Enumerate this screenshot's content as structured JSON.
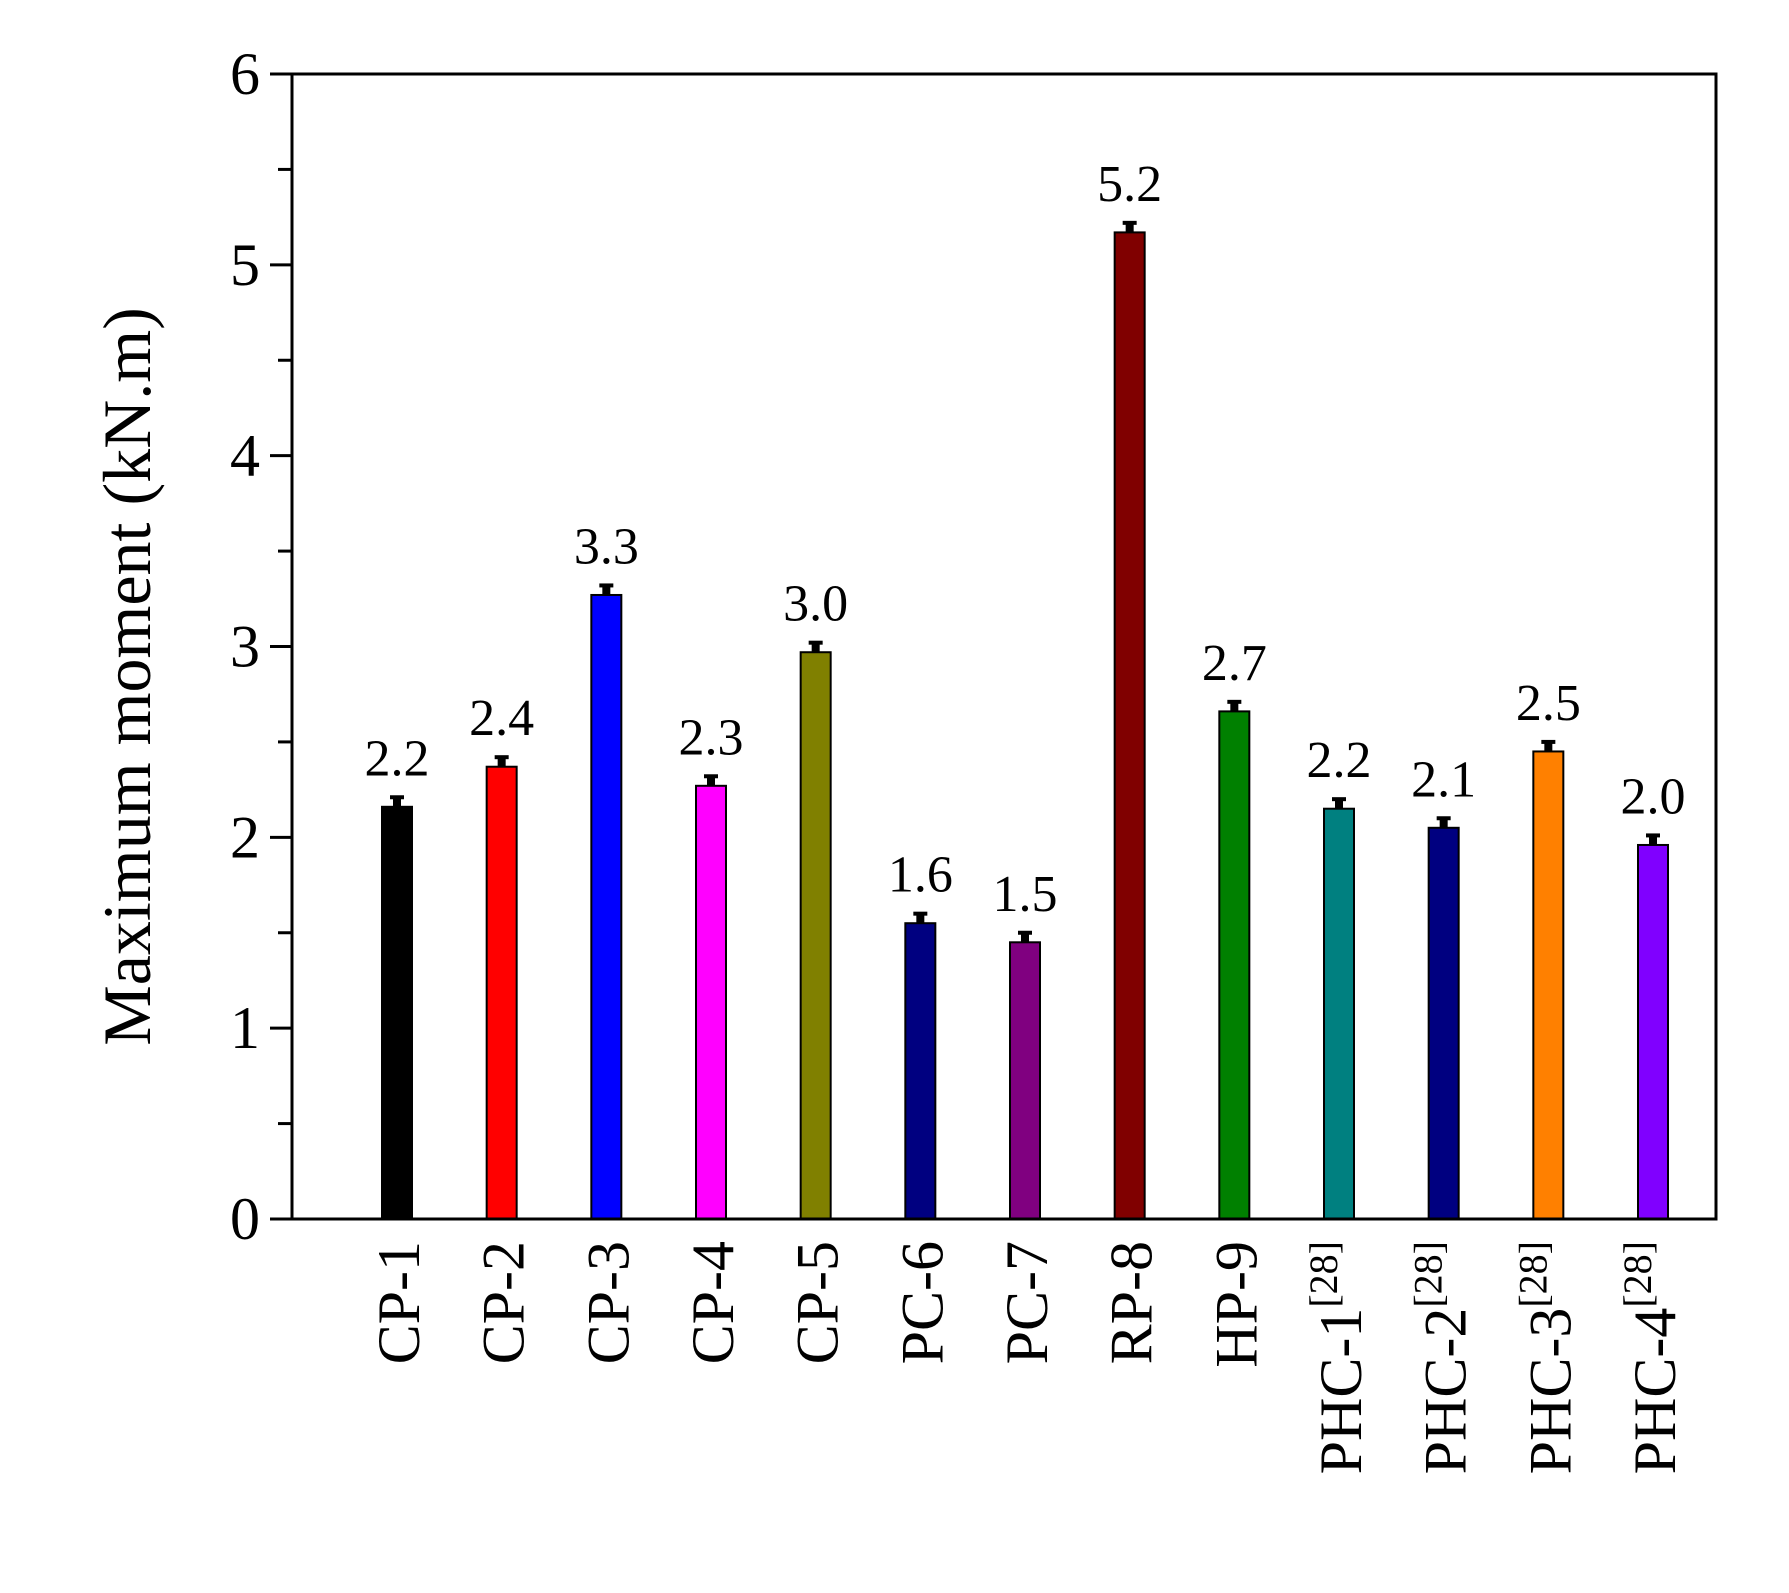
{
  "chart_data": {
    "type": "bar",
    "title": "",
    "xlabel": "",
    "ylabel": "Maximum moment (kN.m)",
    "ylim": [
      0,
      6
    ],
    "yticks": [
      0,
      1,
      2,
      3,
      4,
      5,
      6
    ],
    "grid": false,
    "categories": [
      "CP-1",
      "CP-2",
      "CP-3",
      "CP-4",
      "CP-5",
      "PC-6",
      "PC-7",
      "RP-8",
      "HP-9",
      "PHC-1",
      "PHC-2",
      "PHC-3",
      "PHC-4"
    ],
    "category_superscripts": [
      "",
      "",
      "",
      "",
      "",
      "",
      "",
      "",
      "",
      "[28]",
      "[28]",
      "[28]",
      "[28]"
    ],
    "values": [
      2.16,
      2.37,
      3.27,
      2.27,
      2.97,
      1.55,
      1.45,
      5.17,
      2.66,
      2.15,
      2.05,
      2.45,
      1.96
    ],
    "error": [
      0.05,
      0.05,
      0.05,
      0.05,
      0.05,
      0.05,
      0.05,
      0.05,
      0.05,
      0.05,
      0.05,
      0.05,
      0.05
    ],
    "data_labels": [
      "2.2",
      "2.4",
      "3.3",
      "2.3",
      "3.0",
      "1.6",
      "1.5",
      "5.2",
      "2.7",
      "2.2",
      "2.1",
      "2.5",
      "2.0"
    ],
    "colors": [
      "#000000",
      "#ff0000",
      "#0000ff",
      "#ff00ff",
      "#808000",
      "#000080",
      "#800080",
      "#800000",
      "#008000",
      "#008080",
      "#000080",
      "#ff8000",
      "#8000ff"
    ]
  }
}
